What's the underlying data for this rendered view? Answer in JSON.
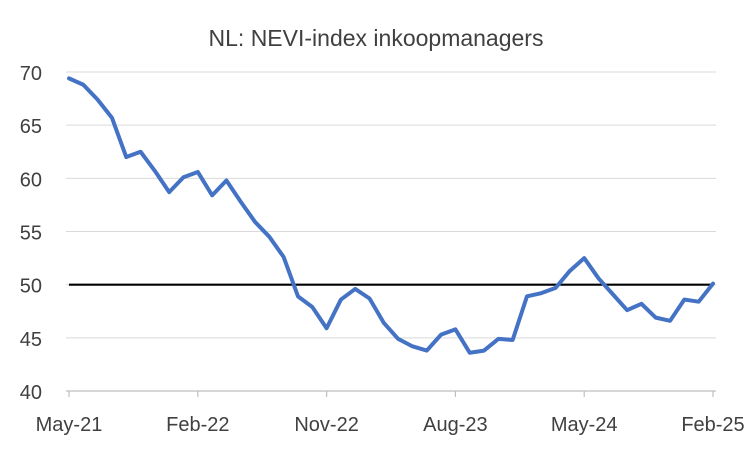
{
  "chart_data": {
    "type": "line",
    "title": "NL: NEVI-index inkoopmanagers",
    "xlabel": "",
    "ylabel": "",
    "ylim": [
      40,
      70
    ],
    "yticks": [
      40,
      45,
      50,
      55,
      60,
      65,
      70
    ],
    "xtick_labels": [
      "May-21",
      "Feb-22",
      "Nov-22",
      "Aug-23",
      "May-24",
      "Feb-25"
    ],
    "grid": true,
    "legend": "none",
    "reference_line": {
      "y": 50,
      "color": "#000000"
    },
    "series": [
      {
        "color": "#4472C4",
        "x": [
          "May-21",
          "Jun-21",
          "Jul-21",
          "Aug-21",
          "Sep-21",
          "Oct-21",
          "Nov-21",
          "Dec-21",
          "Jan-22",
          "Feb-22",
          "Mar-22",
          "Apr-22",
          "May-22",
          "Jun-22",
          "Jul-22",
          "Aug-22",
          "Sep-22",
          "Oct-22",
          "Nov-22",
          "Dec-22",
          "Jan-23",
          "Feb-23",
          "Mar-23",
          "Apr-23",
          "May-23",
          "Jun-23",
          "Jul-23",
          "Aug-23",
          "Sep-23",
          "Oct-23",
          "Nov-23",
          "Dec-23",
          "Jan-24",
          "Feb-24",
          "Mar-24",
          "Apr-24",
          "May-24",
          "Jun-24",
          "Jul-24",
          "Aug-24",
          "Sep-24",
          "Oct-24",
          "Nov-24",
          "Dec-24",
          "Jan-25",
          "Feb-25"
        ],
        "values": [
          69.4,
          68.8,
          67.4,
          65.7,
          62.0,
          62.5,
          60.7,
          58.7,
          60.1,
          60.6,
          58.4,
          59.8,
          57.8,
          55.9,
          54.5,
          52.6,
          48.9,
          47.9,
          45.9,
          48.6,
          49.6,
          48.7,
          46.4,
          44.9,
          44.2,
          43.8,
          45.3,
          45.8,
          43.6,
          43.8,
          44.9,
          44.8,
          48.9,
          49.2,
          49.7,
          51.3,
          52.5,
          50.6,
          49.1,
          47.6,
          48.2,
          46.9,
          46.6,
          48.6,
          48.4,
          50.1
        ]
      }
    ]
  }
}
